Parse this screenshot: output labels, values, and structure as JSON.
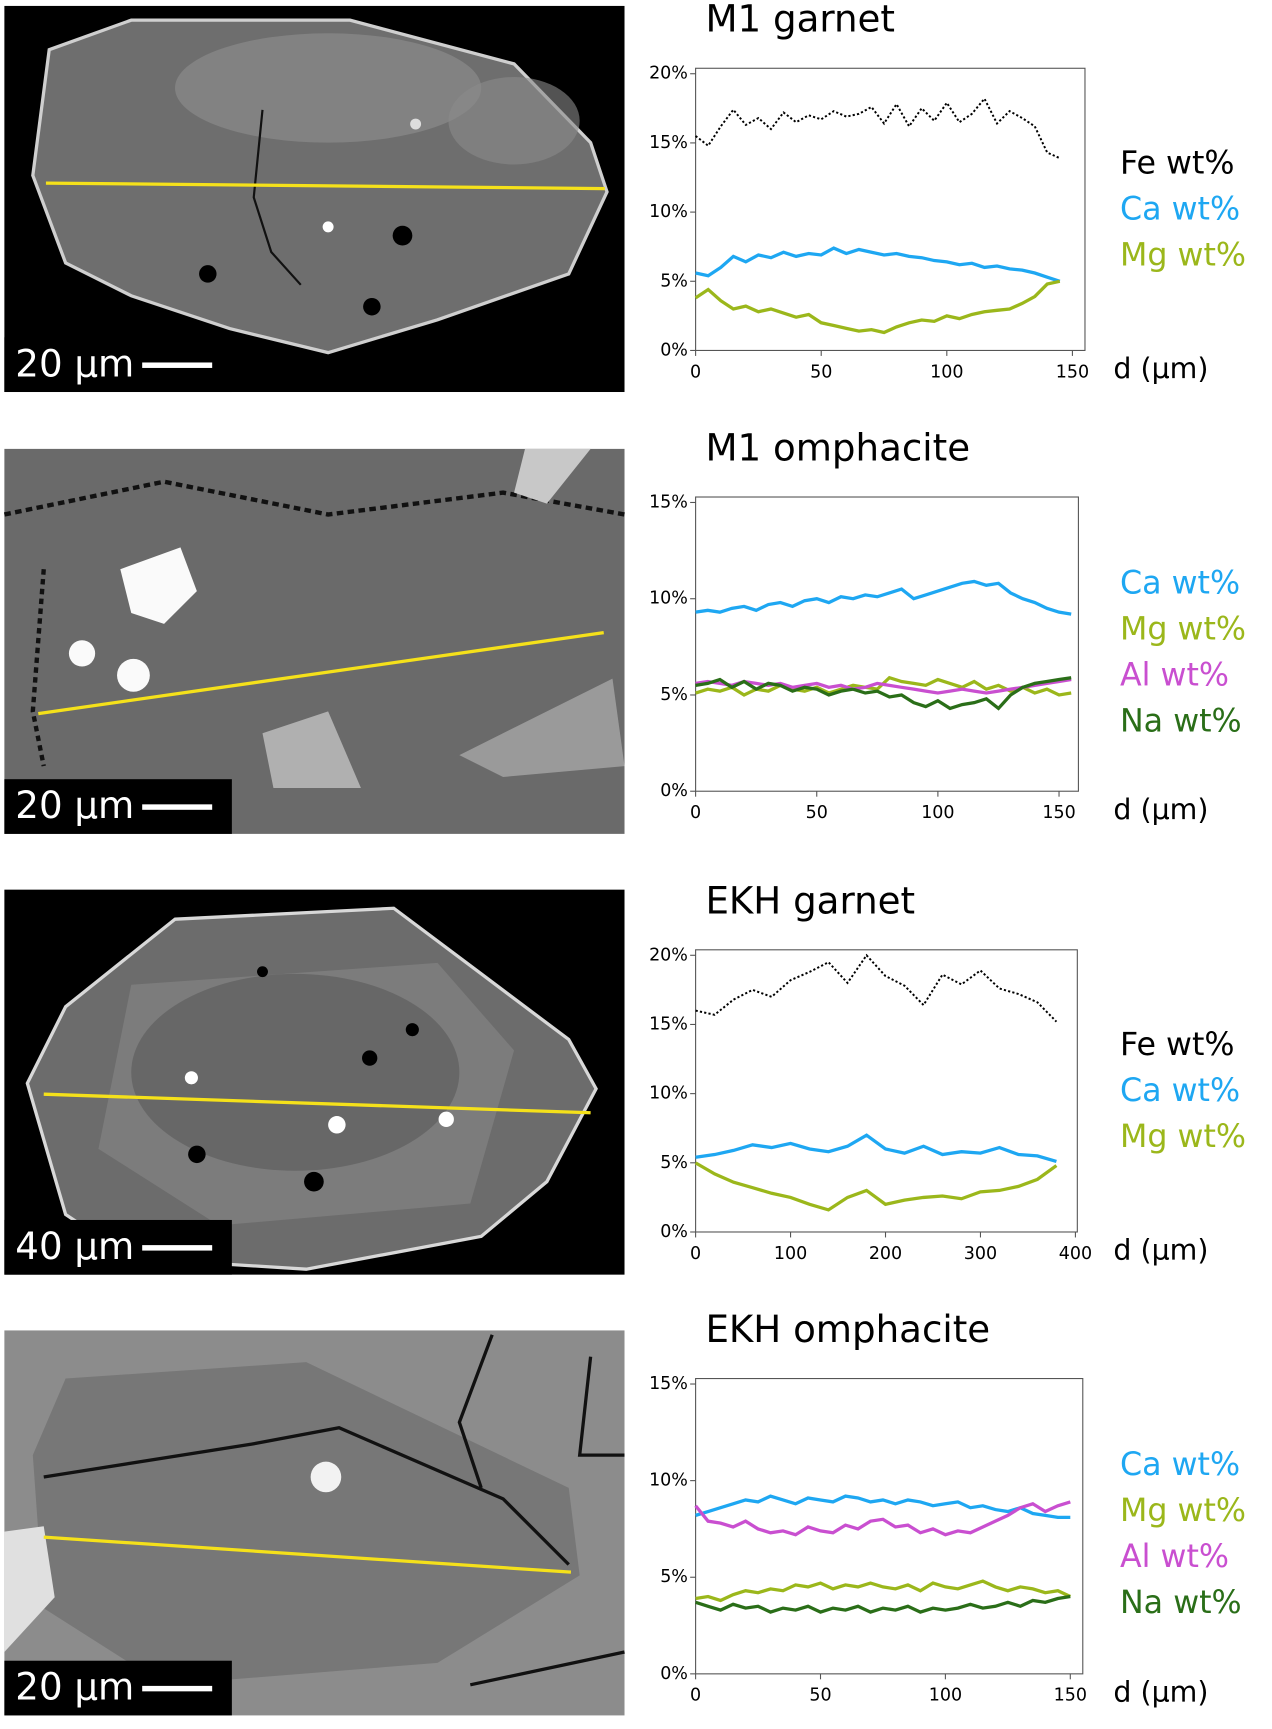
{
  "chart_data": [
    {
      "type": "line",
      "title": "M1 garnet",
      "x_label": "d (µm)",
      "scale_bar": "20 µm",
      "x": [
        0,
        5,
        10,
        15,
        20,
        25,
        30,
        35,
        40,
        45,
        50,
        55,
        60,
        65,
        70,
        75,
        80,
        85,
        90,
        95,
        100,
        105,
        110,
        115,
        120,
        125,
        130,
        135,
        140,
        145
      ],
      "series": [
        {
          "name": "Fe wt%",
          "color": "#000000",
          "line_style": "dotted",
          "values": [
            15.5,
            14.8,
            16.2,
            17.4,
            16.3,
            16.8,
            16.0,
            17.2,
            16.5,
            17.0,
            16.7,
            17.3,
            16.9,
            17.1,
            17.6,
            16.4,
            17.8,
            16.2,
            17.5,
            16.6,
            17.9,
            16.5,
            17.1,
            18.2,
            16.4,
            17.3,
            16.8,
            16.2,
            14.3,
            13.9
          ]
        },
        {
          "name": "Ca wt%",
          "color": "#1ea7f2",
          "line_style": "solid",
          "values": [
            5.6,
            5.4,
            6.0,
            6.8,
            6.4,
            6.9,
            6.7,
            7.1,
            6.8,
            7.0,
            6.9,
            7.4,
            7.0,
            7.3,
            7.1,
            6.9,
            7.0,
            6.8,
            6.7,
            6.5,
            6.4,
            6.2,
            6.3,
            6.0,
            6.1,
            5.9,
            5.8,
            5.6,
            5.3,
            5.0
          ]
        },
        {
          "name": "Mg wt%",
          "color": "#9bb71b",
          "line_style": "solid",
          "values": [
            3.8,
            4.4,
            3.6,
            3.0,
            3.2,
            2.8,
            3.0,
            2.7,
            2.4,
            2.6,
            2.0,
            1.8,
            1.6,
            1.4,
            1.5,
            1.3,
            1.7,
            2.0,
            2.2,
            2.1,
            2.5,
            2.3,
            2.6,
            2.8,
            2.9,
            3.0,
            3.4,
            3.9,
            4.8,
            5.0
          ]
        }
      ],
      "xlim": [
        0,
        155
      ],
      "ylim": [
        0,
        20
      ],
      "xticks": [
        0,
        50,
        100,
        150
      ],
      "yticks": [
        {
          "value": 0,
          "label": "0%"
        },
        {
          "value": 5,
          "label": "5%"
        },
        {
          "value": 10,
          "label": "10%"
        },
        {
          "value": 15,
          "label": "15%"
        },
        {
          "value": 20,
          "label": "20%"
        }
      ]
    },
    {
      "type": "line",
      "title": "M1 omphacite",
      "x_label": "d (µm)",
      "scale_bar": "20 µm",
      "x": [
        0,
        5,
        10,
        15,
        20,
        25,
        30,
        35,
        40,
        45,
        50,
        55,
        60,
        65,
        70,
        75,
        80,
        85,
        90,
        95,
        100,
        105,
        110,
        115,
        120,
        125,
        130,
        135,
        140,
        145,
        150,
        155
      ],
      "series": [
        {
          "name": "Ca wt%",
          "color": "#1ea7f2",
          "line_style": "solid",
          "values": [
            9.3,
            9.4,
            9.3,
            9.5,
            9.6,
            9.4,
            9.7,
            9.8,
            9.6,
            9.9,
            10.0,
            9.8,
            10.1,
            10.0,
            10.2,
            10.1,
            10.3,
            10.5,
            10.0,
            10.2,
            10.4,
            10.6,
            10.8,
            10.9,
            10.7,
            10.8,
            10.3,
            10.0,
            9.8,
            9.5,
            9.3,
            9.2
          ]
        },
        {
          "name": "Mg wt%",
          "color": "#9bb71b",
          "line_style": "solid",
          "values": [
            5.1,
            5.3,
            5.2,
            5.4,
            5.0,
            5.3,
            5.2,
            5.5,
            5.3,
            5.2,
            5.4,
            5.1,
            5.3,
            5.5,
            5.4,
            5.3,
            5.9,
            5.7,
            5.6,
            5.5,
            5.8,
            5.6,
            5.4,
            5.7,
            5.3,
            5.5,
            5.2,
            5.4,
            5.1,
            5.3,
            5.0,
            5.1
          ]
        },
        {
          "name": "Al wt%",
          "color": "#c94fd0",
          "line_style": "solid",
          "values": [
            5.6,
            5.7,
            5.6,
            5.5,
            5.7,
            5.6,
            5.5,
            5.6,
            5.4,
            5.5,
            5.6,
            5.4,
            5.5,
            5.3,
            5.4,
            5.6,
            5.5,
            5.4,
            5.3,
            5.2,
            5.1,
            5.2,
            5.3,
            5.2,
            5.1,
            5.2,
            5.3,
            5.4,
            5.5,
            5.6,
            5.7,
            5.8
          ]
        },
        {
          "name": "Na wt%",
          "color": "#2a6e18",
          "line_style": "solid",
          "values": [
            5.5,
            5.6,
            5.8,
            5.4,
            5.7,
            5.3,
            5.6,
            5.5,
            5.2,
            5.4,
            5.3,
            5.0,
            5.2,
            5.3,
            5.1,
            5.2,
            4.9,
            5.0,
            4.6,
            4.4,
            4.7,
            4.3,
            4.5,
            4.6,
            4.8,
            4.3,
            5.0,
            5.4,
            5.6,
            5.7,
            5.8,
            5.9
          ]
        }
      ],
      "xlim": [
        0,
        158
      ],
      "ylim": [
        0,
        15
      ],
      "xticks": [
        0,
        50,
        100,
        150
      ],
      "yticks": [
        {
          "value": 0,
          "label": "0%"
        },
        {
          "value": 5,
          "label": "5%"
        },
        {
          "value": 10,
          "label": "10%"
        },
        {
          "value": 15,
          "label": "15%"
        }
      ]
    },
    {
      "type": "line",
      "title": "EKH garnet",
      "x_label": "d (µm)",
      "scale_bar": "40 µm",
      "x": [
        0,
        20,
        40,
        60,
        80,
        100,
        120,
        140,
        160,
        180,
        200,
        220,
        240,
        260,
        280,
        300,
        320,
        340,
        360,
        380
      ],
      "series": [
        {
          "name": "Fe wt%",
          "color": "#000000",
          "line_style": "dotted",
          "values": [
            16.0,
            15.7,
            16.8,
            17.5,
            17.0,
            18.2,
            18.8,
            19.5,
            18.0,
            20.0,
            18.5,
            17.8,
            16.4,
            18.6,
            17.9,
            18.9,
            17.6,
            17.2,
            16.6,
            15.2
          ]
        },
        {
          "name": "Ca wt%",
          "color": "#1ea7f2",
          "line_style": "solid",
          "values": [
            5.4,
            5.6,
            5.9,
            6.3,
            6.1,
            6.4,
            6.0,
            5.8,
            6.2,
            7.0,
            6.0,
            5.7,
            6.2,
            5.6,
            5.8,
            5.7,
            6.1,
            5.6,
            5.5,
            5.1
          ]
        },
        {
          "name": "Mg wt%",
          "color": "#9bb71b",
          "line_style": "solid",
          "values": [
            5.0,
            4.2,
            3.6,
            3.2,
            2.8,
            2.5,
            2.0,
            1.6,
            2.5,
            3.0,
            2.0,
            2.3,
            2.5,
            2.6,
            2.4,
            2.9,
            3.0,
            3.3,
            3.8,
            4.8
          ]
        }
      ],
      "xlim": [
        0,
        402
      ],
      "ylim": [
        0,
        20
      ],
      "xticks": [
        0,
        100,
        200,
        300,
        400
      ],
      "yticks": [
        {
          "value": 0,
          "label": "0%"
        },
        {
          "value": 5,
          "label": "5%"
        },
        {
          "value": 10,
          "label": "10%"
        },
        {
          "value": 15,
          "label": "15%"
        },
        {
          "value": 20,
          "label": "20%"
        }
      ]
    },
    {
      "type": "line",
      "title": "EKH omphacite",
      "x_label": "d (µm)",
      "scale_bar": "20 µm",
      "x": [
        0,
        5,
        10,
        15,
        20,
        25,
        30,
        35,
        40,
        45,
        50,
        55,
        60,
        65,
        70,
        75,
        80,
        85,
        90,
        95,
        100,
        105,
        110,
        115,
        120,
        125,
        130,
        135,
        140,
        145,
        150
      ],
      "series": [
        {
          "name": "Ca wt%",
          "color": "#1ea7f2",
          "line_style": "solid",
          "values": [
            8.2,
            8.4,
            8.6,
            8.8,
            9.0,
            8.9,
            9.2,
            9.0,
            8.8,
            9.1,
            9.0,
            8.9,
            9.2,
            9.1,
            8.9,
            9.0,
            8.8,
            9.0,
            8.9,
            8.7,
            8.8,
            8.9,
            8.6,
            8.7,
            8.5,
            8.4,
            8.6,
            8.3,
            8.2,
            8.1,
            8.1
          ]
        },
        {
          "name": "Mg wt%",
          "color": "#9bb71b",
          "line_style": "solid",
          "values": [
            3.9,
            4.0,
            3.8,
            4.1,
            4.3,
            4.2,
            4.4,
            4.3,
            4.6,
            4.5,
            4.7,
            4.4,
            4.6,
            4.5,
            4.7,
            4.5,
            4.4,
            4.6,
            4.3,
            4.7,
            4.5,
            4.4,
            4.6,
            4.8,
            4.5,
            4.3,
            4.5,
            4.4,
            4.2,
            4.3,
            4.0
          ]
        },
        {
          "name": "Al wt%",
          "color": "#c94fd0",
          "line_style": "solid",
          "values": [
            8.7,
            7.9,
            7.8,
            7.6,
            7.9,
            7.5,
            7.3,
            7.4,
            7.2,
            7.6,
            7.4,
            7.3,
            7.7,
            7.5,
            7.9,
            8.0,
            7.6,
            7.7,
            7.3,
            7.5,
            7.2,
            7.4,
            7.3,
            7.6,
            7.9,
            8.2,
            8.6,
            8.8,
            8.4,
            8.7,
            8.9
          ]
        },
        {
          "name": "Na wt%",
          "color": "#2a6e18",
          "line_style": "solid",
          "values": [
            3.7,
            3.5,
            3.3,
            3.6,
            3.4,
            3.5,
            3.2,
            3.4,
            3.3,
            3.5,
            3.2,
            3.4,
            3.3,
            3.5,
            3.2,
            3.4,
            3.3,
            3.5,
            3.2,
            3.4,
            3.3,
            3.4,
            3.6,
            3.4,
            3.5,
            3.7,
            3.5,
            3.8,
            3.7,
            3.9,
            4.0
          ]
        }
      ],
      "xlim": [
        0,
        155
      ],
      "ylim": [
        0,
        15
      ],
      "xticks": [
        0,
        50,
        100,
        150
      ],
      "yticks": [
        {
          "value": 0,
          "label": "0%"
        },
        {
          "value": 5,
          "label": "5%"
        },
        {
          "value": 10,
          "label": "10%"
        },
        {
          "value": 15,
          "label": "15%"
        }
      ]
    }
  ]
}
